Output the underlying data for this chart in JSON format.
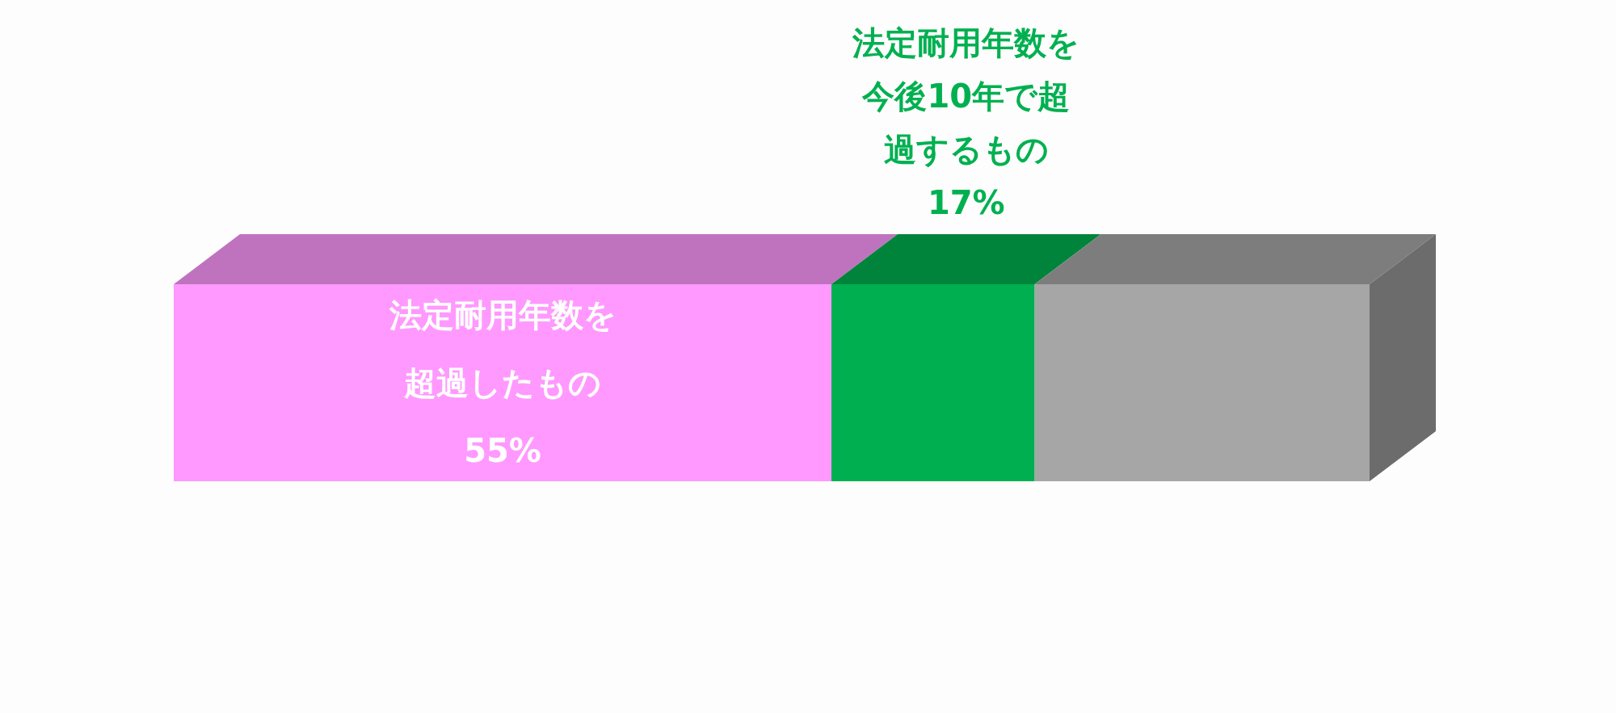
{
  "chart_data": {
    "type": "bar",
    "orientation": "horizontal",
    "stacked": true,
    "categories": [
      null
    ],
    "xlim": [
      0,
      100
    ],
    "series": [
      {
        "name": "法定耐用年数を超過したもの",
        "color": "#ff99ff",
        "values": [
          55
        ],
        "value_labels": [
          "55%"
        ]
      },
      {
        "name": "法定耐用年数を今後10年で超過するもの",
        "color": "#00b050",
        "values": [
          17
        ],
        "value_labels": [
          "17%"
        ]
      },
      {
        "color": "#a6a6a6",
        "values": [
          28
        ]
      }
    ]
  }
}
